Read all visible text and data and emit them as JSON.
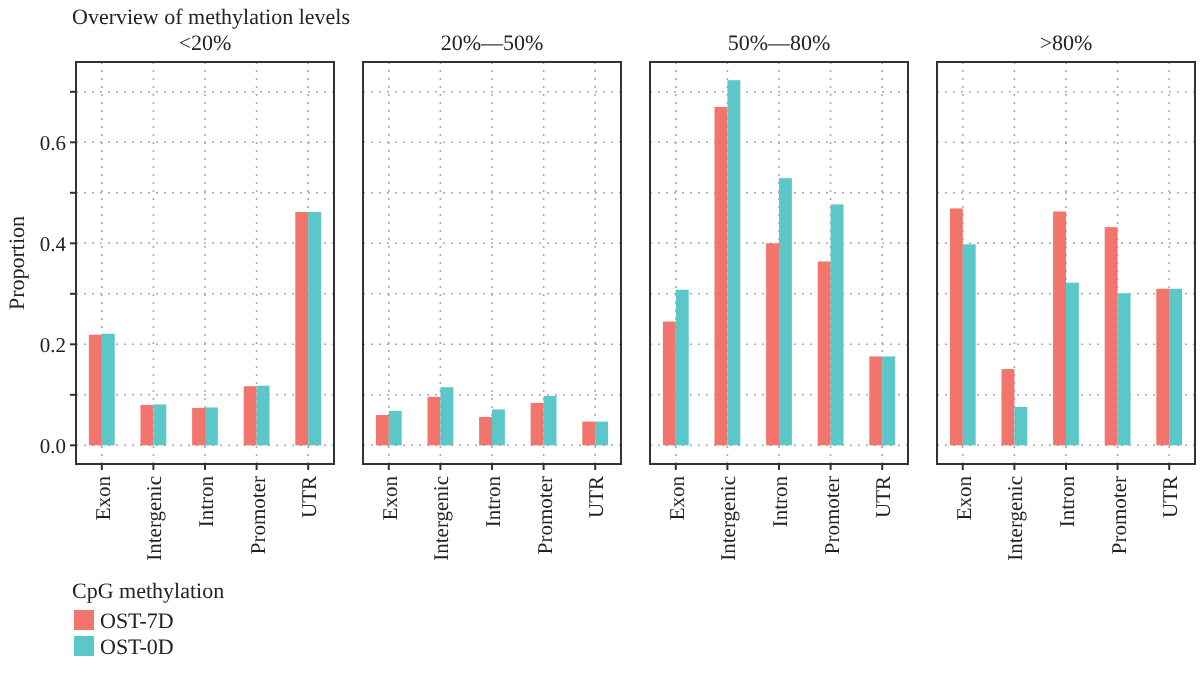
{
  "chart_data": [
    {
      "type": "bar",
      "title": "Overview of methylation levels",
      "subtitle": "<20%",
      "ylabel": "Proportion",
      "legend_title": "CpG methylation",
      "legend": "bottom left",
      "grid": true,
      "categories": [
        "Exon",
        "Intergenic",
        "Intron",
        "Promoter",
        "UTR"
      ],
      "ylim": [
        -0.037,
        0.759
      ],
      "yticks": [
        {
          "value": 0,
          "label": "0.0"
        },
        {
          "value": 0.1,
          "label": null
        },
        0.2,
        {
          "value": 0.3,
          "label": null
        },
        0.4,
        {
          "value": 0.5,
          "label": null
        },
        0.6,
        {
          "value": 0.7,
          "label": null
        }
      ],
      "series": [
        {
          "name": "OST-7D",
          "color": "#f1756d",
          "values": [
            0.219,
            0.08,
            0.074,
            0.117,
            0.462
          ]
        },
        {
          "name": "OST-0D",
          "color": "#5cc7c9",
          "values": [
            0.221,
            0.081,
            0.075,
            0.118,
            0.462
          ]
        }
      ]
    },
    {
      "type": "bar",
      "subtitle": "20%—50%",
      "grid": true,
      "tick_labels": "x",
      "categories": [
        "Exon",
        "Intergenic",
        "Intron",
        "Promoter",
        "UTR"
      ],
      "ylim": [
        -0.037,
        0.759
      ],
      "yticks": [
        {
          "value": 0,
          "label": null
        },
        {
          "value": 0.1,
          "label": null
        },
        {
          "value": 0.2,
          "label": null
        },
        {
          "value": 0.3,
          "label": null
        },
        {
          "value": 0.4,
          "label": null
        },
        {
          "value": 0.5,
          "label": null
        },
        {
          "value": 0.6,
          "label": null
        },
        {
          "value": 0.7,
          "label": null
        }
      ],
      "series": [
        {
          "color": "#f1756d",
          "values": [
            0.06,
            0.096,
            0.056,
            0.084,
            0.047
          ]
        },
        {
          "color": "#5cc7c9",
          "values": [
            0.068,
            0.115,
            0.071,
            0.098,
            0.047
          ]
        }
      ]
    },
    {
      "type": "bar",
      "subtitle": "50%—80%",
      "grid": true,
      "tick_labels": "x",
      "categories": [
        "Exon",
        "Intergenic",
        "Intron",
        "Promoter",
        "UTR"
      ],
      "ylim": [
        -0.037,
        0.759
      ],
      "yticks": [
        {
          "value": 0,
          "label": null
        },
        {
          "value": 0.1,
          "label": null
        },
        {
          "value": 0.2,
          "label": null
        },
        {
          "value": 0.3,
          "label": null
        },
        {
          "value": 0.4,
          "label": null
        },
        {
          "value": 0.5,
          "label": null
        },
        {
          "value": 0.6,
          "label": null
        },
        {
          "value": 0.7,
          "label": null
        }
      ],
      "series": [
        {
          "color": "#f1756d",
          "values": [
            0.245,
            0.67,
            0.4,
            0.364,
            0.176
          ]
        },
        {
          "color": "#5cc7c9",
          "values": [
            0.308,
            0.723,
            0.529,
            0.477,
            0.176
          ]
        }
      ]
    },
    {
      "type": "bar",
      "subtitle": ">80%",
      "grid": true,
      "tick_labels": "x",
      "categories": [
        "Exon",
        "Intergenic",
        "Intron",
        "Promoter",
        "UTR"
      ],
      "ylim": [
        -0.037,
        0.759
      ],
      "yticks": [
        {
          "value": 0,
          "label": null
        },
        {
          "value": 0.1,
          "label": null
        },
        {
          "value": 0.2,
          "label": null
        },
        {
          "value": 0.3,
          "label": null
        },
        {
          "value": 0.4,
          "label": null
        },
        {
          "value": 0.5,
          "label": null
        },
        {
          "value": 0.6,
          "label": null
        },
        {
          "value": 0.7,
          "label": null
        }
      ],
      "series": [
        {
          "color": "#f1756d",
          "values": [
            0.469,
            0.151,
            0.463,
            0.432,
            0.31
          ]
        },
        {
          "color": "#5cc7c9",
          "values": [
            0.398,
            0.076,
            0.322,
            0.301,
            0.31
          ]
        }
      ]
    }
  ]
}
